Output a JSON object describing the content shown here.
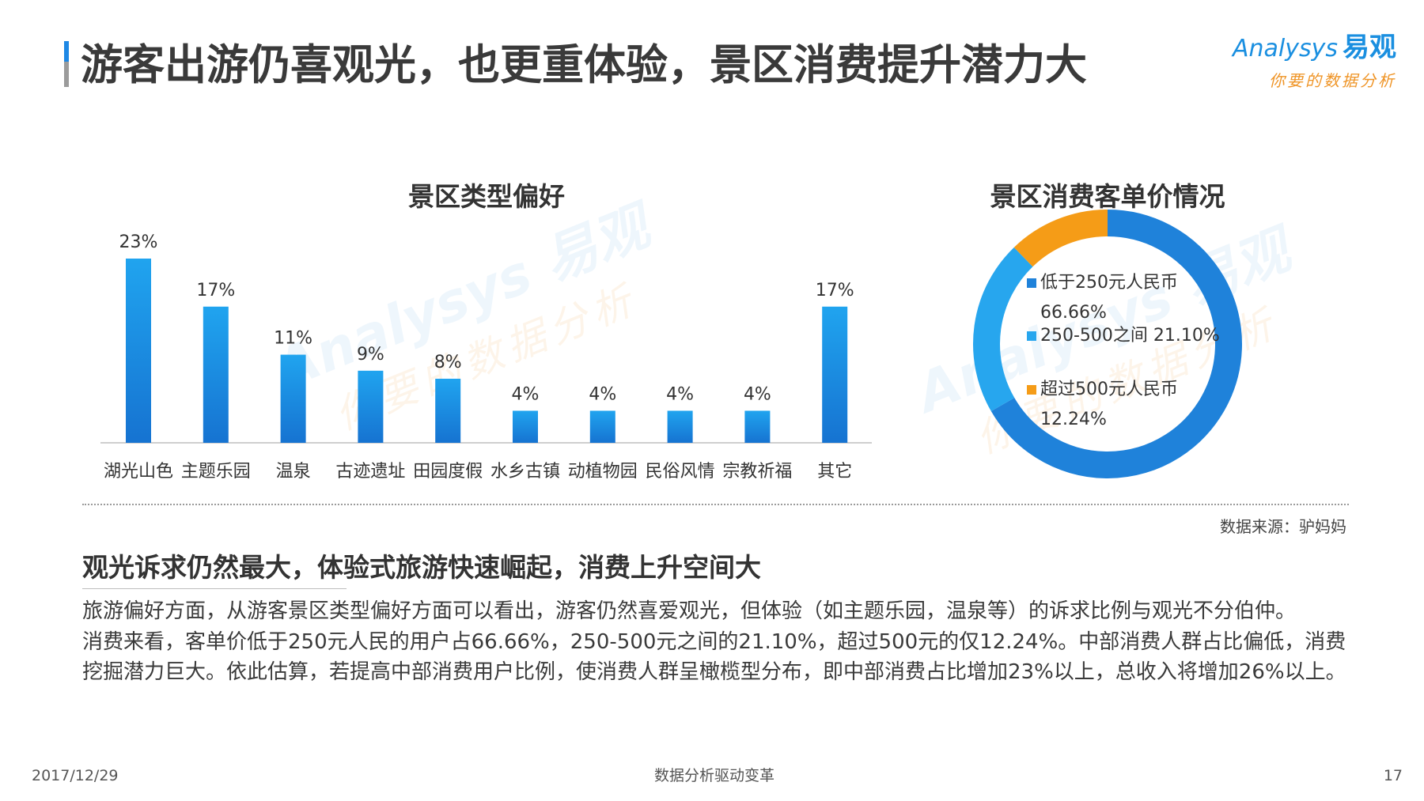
{
  "slide": {
    "title": "游客出游仍喜观光，也更重体验，景区消费提升潜力大",
    "accent_color": "#1e88e5"
  },
  "logo": {
    "brand": "Analysys",
    "brand_cn": "易观",
    "tagline": "你要的数据分析"
  },
  "watermark": {
    "brand": "Analysys 易观",
    "tagline": "你要的数据分析"
  },
  "chart_data": [
    {
      "type": "bar",
      "title": "景区类型偏好",
      "categories": [
        "湖光山色",
        "主题乐园",
        "温泉",
        "古迹遗址",
        "田园度假",
        "水乡古镇",
        "动植物园",
        "民俗风情",
        "宗教祈福",
        "其它"
      ],
      "values": [
        23,
        17,
        11,
        9,
        8,
        4,
        4,
        4,
        4,
        17
      ],
      "value_labels": [
        "23%",
        "17%",
        "11%",
        "9%",
        "8%",
        "4%",
        "4%",
        "4%",
        "4%",
        "17%"
      ],
      "unit": "%",
      "grid": false,
      "bar_gradient": [
        "#20a4ef",
        "#1673d1"
      ]
    },
    {
      "type": "pie",
      "donut": true,
      "title": "景区消费客单价情况",
      "labels": [
        "低于250元人民币",
        "250-500之间",
        "超过500元人民币"
      ],
      "values": [
        66.66,
        21.1,
        12.24
      ],
      "value_labels": [
        "66.66%",
        "21.10%",
        "12.24%"
      ],
      "colors": [
        "#1f82da",
        "#27a6ee",
        "#f59c17"
      ],
      "legend": "inside"
    }
  ],
  "source": "数据来源：驴妈妈",
  "summary": {
    "heading": "观光诉求仍然最大，体验式旅游快速崛起，消费上升空间大",
    "lines": [
      "旅游偏好方面，从游客景区类型偏好方面可以看出，游客仍然喜爱观光，但体验（如主题乐园，温泉等）的诉求比例与观光不分伯仲。",
      "消费来看，客单价低于250元人民的用户占66.66%，250-500元之间的21.10%，超过500元的仅12.24%。中部消费人群占比偏低，消费",
      "挖掘潜力巨大。依此估算，若提高中部消费用户比例，使消费人群呈橄榄型分布，即中部消费占比增加23%以上，总收入将增加26%以上。"
    ]
  },
  "footer": {
    "date": "2017/12/29",
    "center": "数据分析驱动变革",
    "page": "17"
  }
}
